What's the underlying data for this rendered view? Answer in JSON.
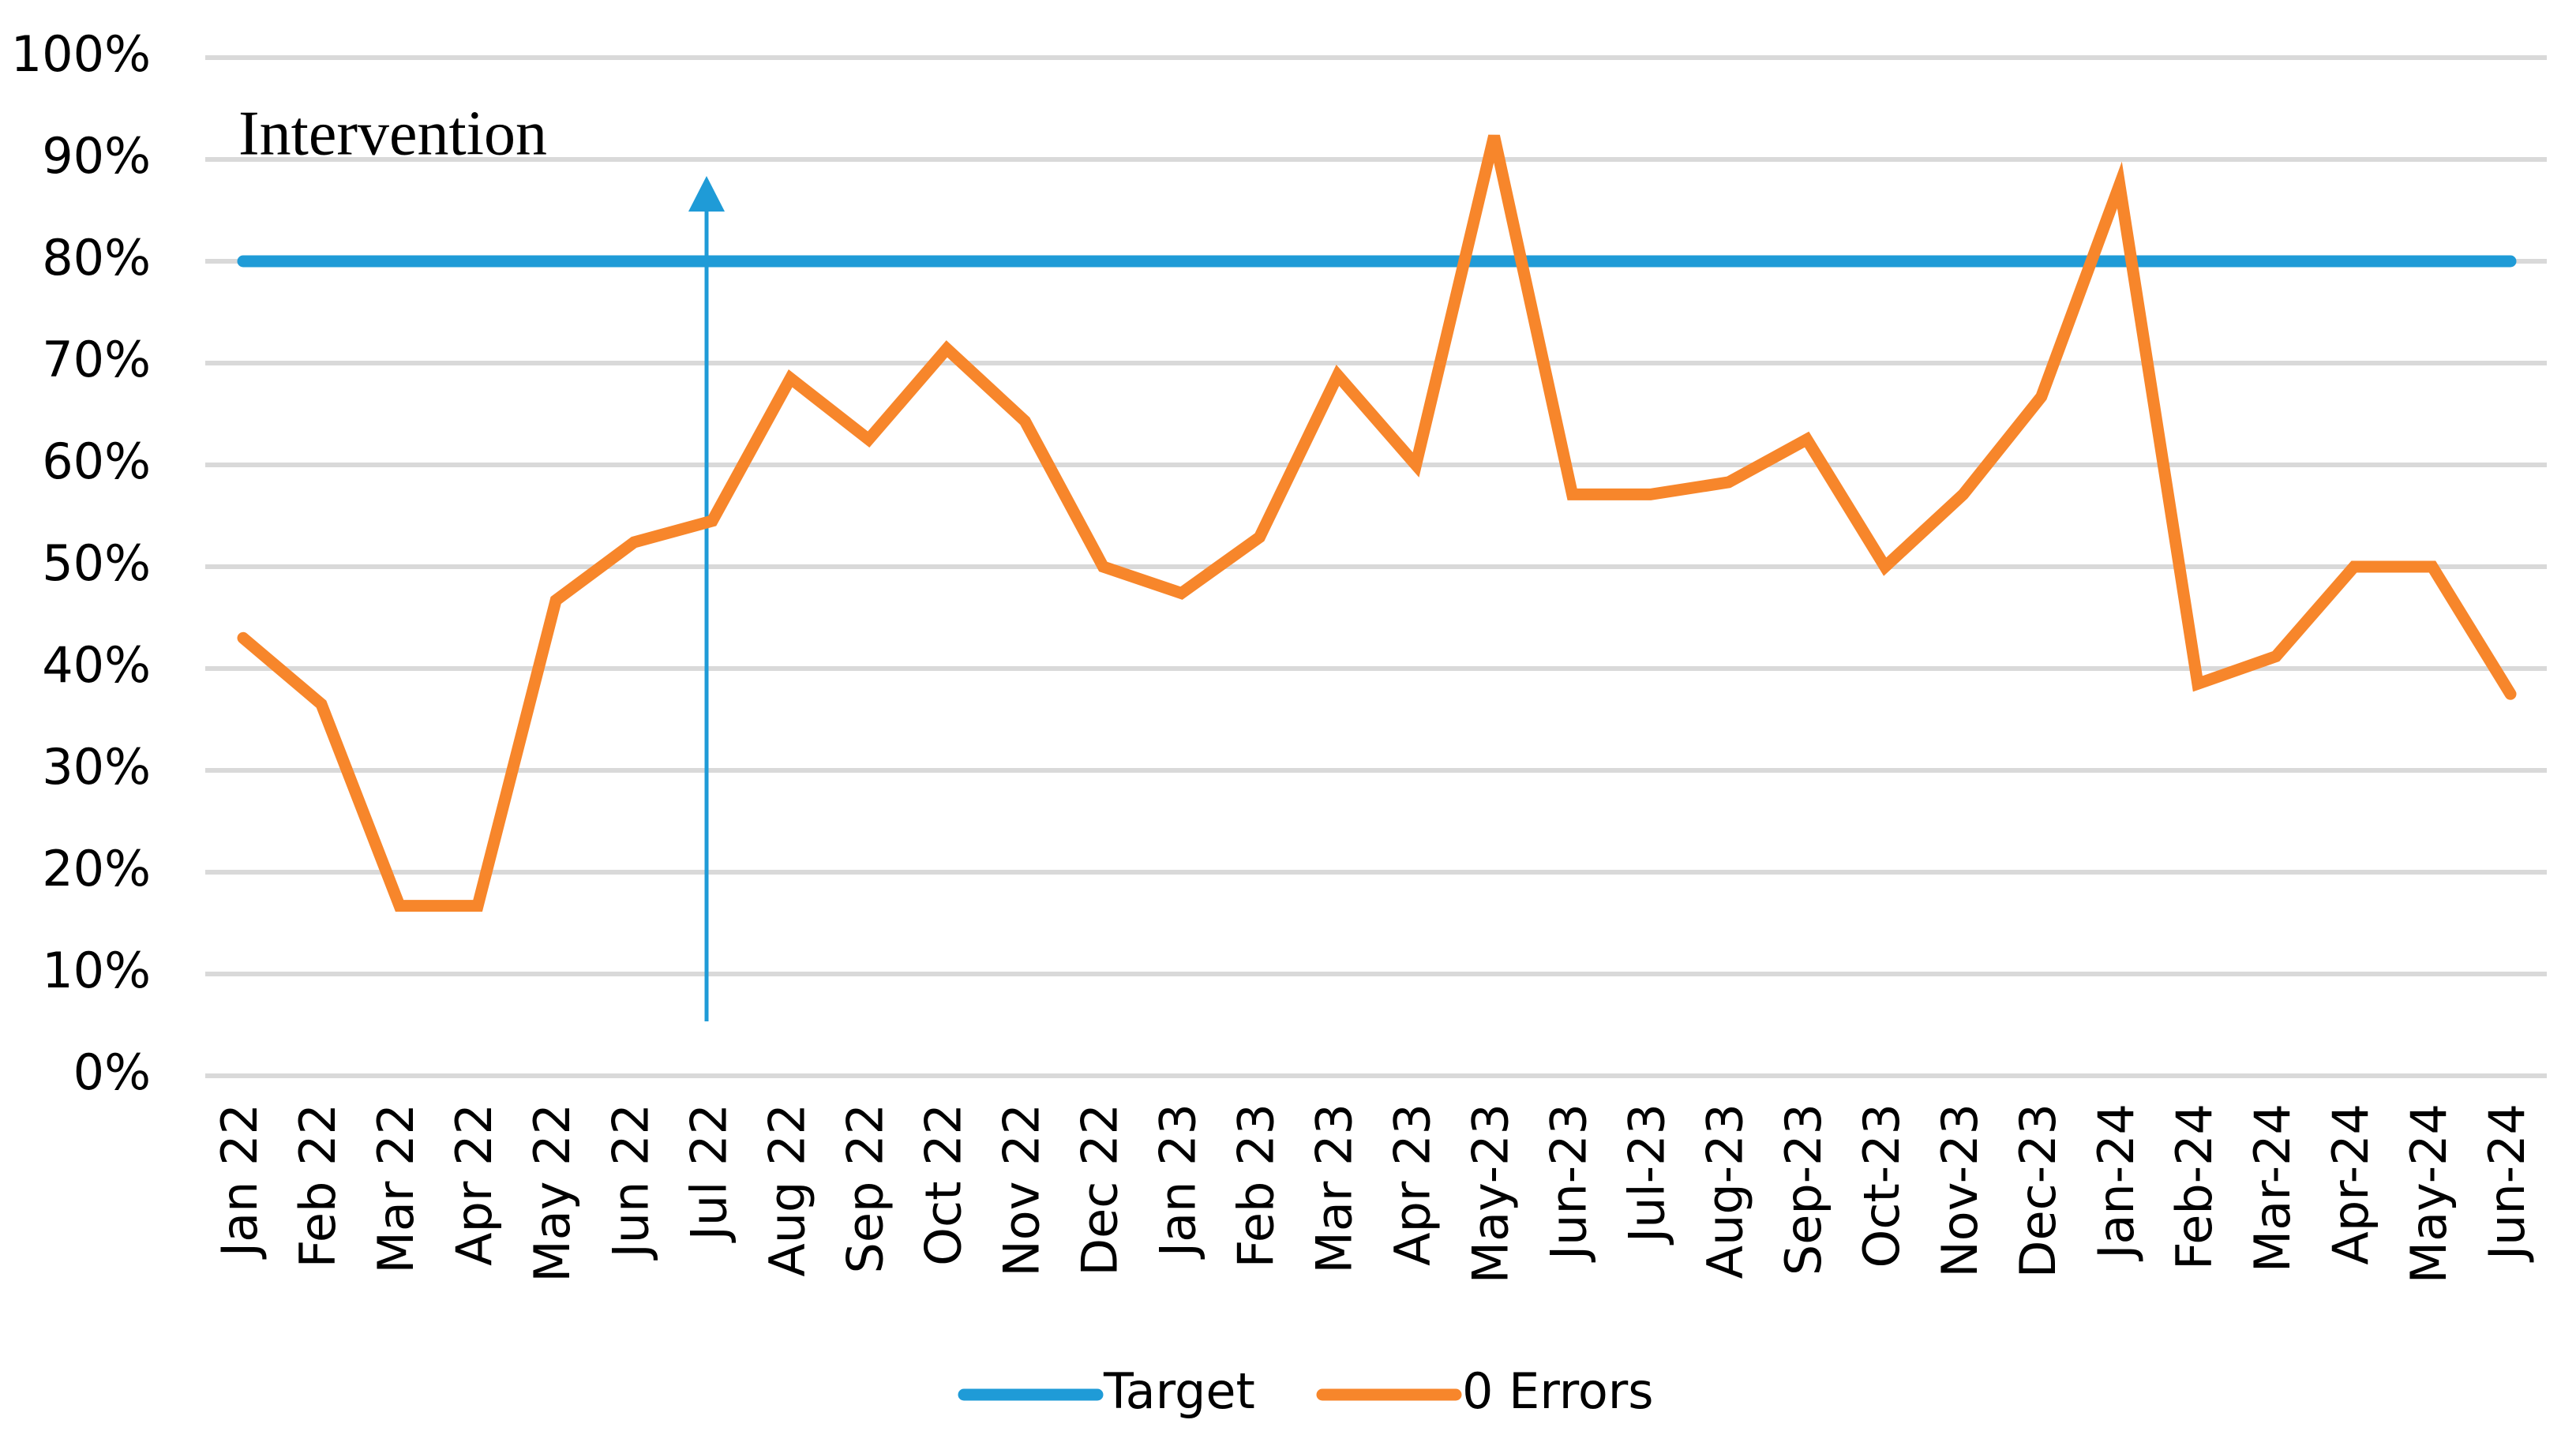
{
  "chart_data": {
    "type": "line",
    "annotation": "Intervention",
    "categories": [
      "Jan 22",
      "Feb 22",
      "Mar 22",
      "Apr 22",
      "May 22",
      "Jun 22",
      "Jul 22",
      "Aug 22",
      "Sep 22",
      "Oct 22",
      "Nov 22",
      "Dec 22",
      "Jan 23",
      "Feb 23",
      "Mar 23",
      "Apr 23",
      "May-23",
      "Jun-23",
      "Jul-23",
      "Aug-23",
      "Sep-23",
      "Oct-23",
      "Nov-23",
      "Dec-23",
      "Jan-24",
      "Feb-24",
      "Mar-24",
      "Apr-24",
      "May-24",
      "Jun-24"
    ],
    "series": [
      {
        "name": "Target",
        "color": "#1f9bd7",
        "values": [
          80,
          80,
          80,
          80,
          80,
          80,
          80,
          80,
          80,
          80,
          80,
          80,
          80,
          80,
          80,
          80,
          80,
          80,
          80,
          80,
          80,
          80,
          80,
          80,
          80,
          80,
          80,
          80,
          80,
          80
        ]
      },
      {
        "name": "0 Errors",
        "color": "#f7862b",
        "values": [
          43,
          36.5,
          16.7,
          16.7,
          46.7,
          52.4,
          54.5,
          68.5,
          62.5,
          71.4,
          64.3,
          50,
          47.4,
          52.9,
          68.8,
          60,
          92.3,
          57.1,
          57.1,
          58.3,
          62.5,
          50,
          57.1,
          66.7,
          87.5,
          38.5,
          41.2,
          50,
          50,
          37.5
        ]
      }
    ],
    "ylim": [
      0,
      100
    ],
    "yticks": [
      {
        "value": 0,
        "label": "0%"
      },
      {
        "value": 10,
        "label": "10%"
      },
      {
        "value": 20,
        "label": "20%"
      },
      {
        "value": 30,
        "label": "30%"
      },
      {
        "value": 40,
        "label": "40%"
      },
      {
        "value": 50,
        "label": "50%"
      },
      {
        "value": 60,
        "label": "60%"
      },
      {
        "value": 70,
        "label": "70%"
      },
      {
        "value": 80,
        "label": "80%"
      },
      {
        "value": 90,
        "label": "90%"
      },
      {
        "value": 100,
        "label": "100%"
      }
    ],
    "grid": true,
    "legend": "bottom"
  }
}
